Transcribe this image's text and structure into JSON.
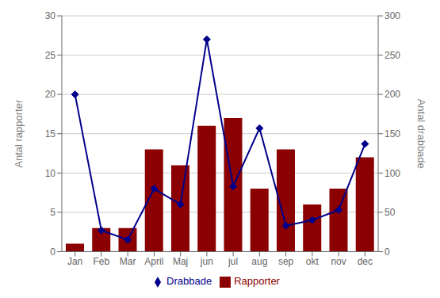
{
  "chart_data": {
    "type": "bar",
    "categories": [
      "Jan",
      "Feb",
      "Mar",
      "April",
      "Maj",
      "jun",
      "jul",
      "aug",
      "sep",
      "okt",
      "nov",
      "dec"
    ],
    "series": [
      {
        "name": "Rapporter",
        "type": "bar",
        "color": "#8B0000",
        "values": [
          1,
          3,
          3,
          13,
          11,
          16,
          17,
          8,
          13,
          6,
          8,
          12
        ]
      },
      {
        "name": "Drabbade",
        "type": "line",
        "color": "#00008B",
        "marker": "diamond",
        "axis": "y2",
        "values": [
          200,
          27,
          15,
          80,
          60,
          270,
          83,
          157,
          33,
          40,
          53,
          137
        ]
      }
    ],
    "ylabel": "Antal rapporter",
    "y2label": "Antal drabbade",
    "ylim": [
      0,
      30
    ],
    "yticks": [
      0,
      5,
      10,
      15,
      20,
      25,
      30
    ],
    "y2lim": [
      0,
      300
    ],
    "y2ticks": [
      0,
      50,
      100,
      150,
      200,
      250,
      300
    ],
    "grid": true,
    "legend": "bottom"
  }
}
